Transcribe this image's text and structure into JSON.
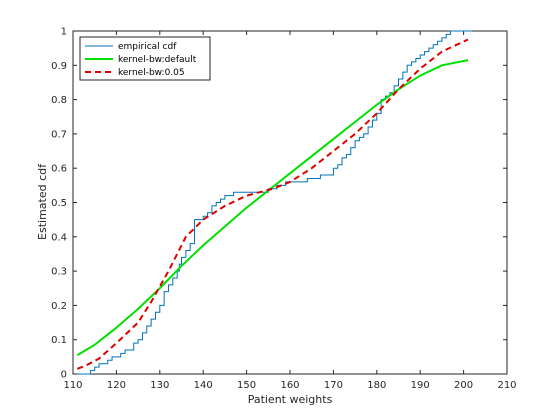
{
  "chart_data": {
    "type": "line",
    "xlabel": "Patient weights",
    "ylabel": "Estimated cdf",
    "xlim": [
      110,
      210
    ],
    "ylim": [
      0,
      1
    ],
    "x_ticks": [
      110,
      120,
      130,
      140,
      150,
      160,
      170,
      180,
      190,
      200,
      210
    ],
    "y_ticks": [
      0,
      0.1,
      0.2,
      0.3,
      0.4,
      0.5,
      0.6,
      0.7,
      0.8,
      0.9,
      1
    ],
    "legend_position": "top-left",
    "series": [
      {
        "name": "empirical cdf",
        "style": "stairs",
        "color": "#0072BD",
        "x": [
          111,
          114,
          115,
          116,
          118,
          119,
          121,
          122,
          124,
          125,
          126,
          127,
          128,
          129,
          130,
          131,
          132,
          133,
          134,
          134.5,
          135,
          136,
          137,
          138,
          140,
          141,
          142,
          143,
          144,
          145,
          146,
          147,
          152,
          155,
          157,
          159,
          162,
          164,
          165,
          167,
          170,
          171,
          172,
          173,
          174,
          175,
          176,
          177,
          178,
          179,
          180,
          181,
          182,
          183,
          184,
          185,
          186,
          187,
          188,
          189,
          190,
          191,
          192,
          193,
          194,
          195,
          196,
          197,
          202
        ],
        "y": [
          0,
          0.01,
          0.02,
          0.03,
          0.04,
          0.05,
          0.06,
          0.07,
          0.09,
          0.1,
          0.12,
          0.14,
          0.16,
          0.18,
          0.2,
          0.24,
          0.26,
          0.28,
          0.3,
          0.32,
          0.34,
          0.36,
          0.38,
          0.45,
          0.46,
          0.47,
          0.49,
          0.5,
          0.51,
          0.52,
          0.52,
          0.53,
          0.53,
          0.54,
          0.55,
          0.56,
          0.56,
          0.57,
          0.57,
          0.58,
          0.6,
          0.61,
          0.63,
          0.64,
          0.66,
          0.68,
          0.69,
          0.7,
          0.72,
          0.74,
          0.76,
          0.8,
          0.81,
          0.82,
          0.84,
          0.86,
          0.88,
          0.9,
          0.91,
          0.92,
          0.93,
          0.94,
          0.95,
          0.96,
          0.97,
          0.98,
          0.99,
          1.0,
          1.0
        ]
      },
      {
        "name": "kernel-bw:default",
        "style": "solid",
        "color": "#00E000",
        "x": [
          111,
          115,
          120,
          125,
          130,
          135,
          140,
          145,
          150,
          155,
          160,
          165,
          170,
          175,
          180,
          185,
          190,
          195,
          201
        ],
        "y": [
          0.055,
          0.085,
          0.135,
          0.19,
          0.25,
          0.315,
          0.375,
          0.43,
          0.485,
          0.535,
          0.585,
          0.635,
          0.685,
          0.735,
          0.785,
          0.83,
          0.87,
          0.9,
          0.915
        ]
      },
      {
        "name": "kernel-bw:0.05",
        "style": "dashed",
        "color": "#E00000",
        "x": [
          111,
          113,
          116,
          120,
          125,
          128,
          132,
          136,
          140,
          145,
          150,
          153,
          156,
          160,
          165,
          170,
          175,
          180,
          185,
          190,
          195,
          201
        ],
        "y": [
          0.015,
          0.025,
          0.045,
          0.09,
          0.15,
          0.21,
          0.3,
          0.4,
          0.45,
          0.49,
          0.52,
          0.53,
          0.54,
          0.56,
          0.6,
          0.65,
          0.7,
          0.76,
          0.83,
          0.89,
          0.94,
          0.975
        ]
      }
    ]
  }
}
